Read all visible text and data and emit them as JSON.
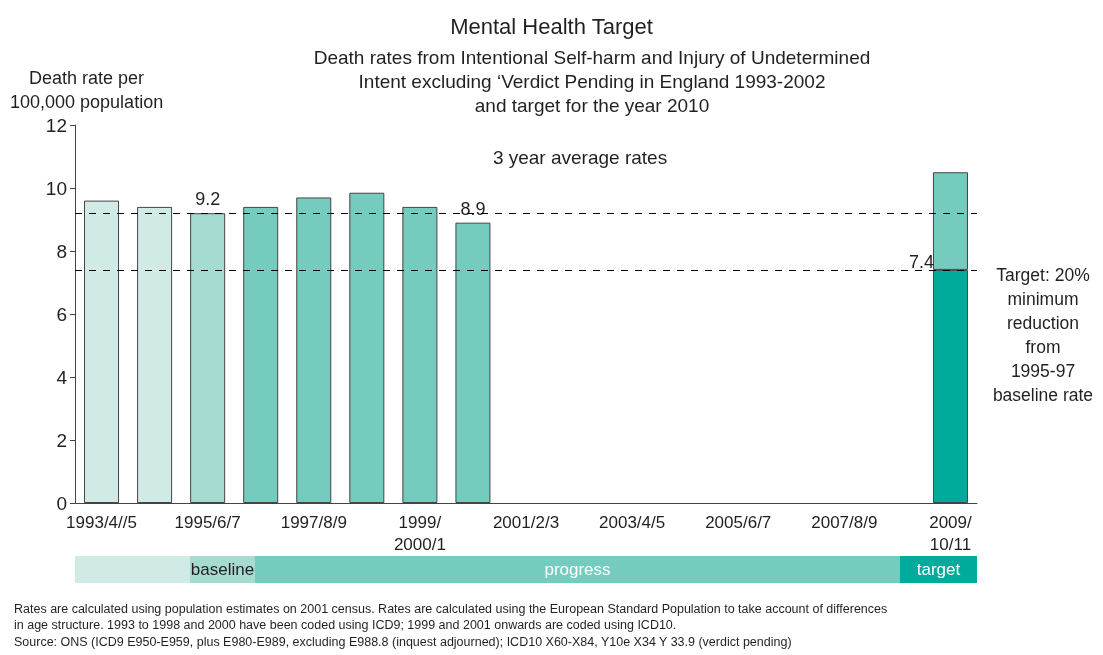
{
  "chart_data": {
    "type": "bar",
    "title": "Mental Health Target",
    "subtitle": "Death rates from Intentional Self-harm and Injury of Undetermined\nIntent excluding ‘Verdict Pending in England 1993-2002\nand target for the year 2010",
    "ylabel": "Death rate per\n100,000 population",
    "categories": [
      "1993/4//5",
      null,
      "1995/6/7",
      null,
      "1997/8/9",
      null,
      "1999/\n2000/1",
      null,
      "2001/2/3",
      null,
      "2003/4/5",
      null,
      "2005/6/7",
      null,
      "2007/8/9",
      null,
      "2009/\n10/11"
    ],
    "stacked": true,
    "series": [
      {
        "colors": [
          "#d0ebe5",
          "#d0ebe5",
          "#a6dbd1",
          "#75cbbe",
          "#75cbbe",
          "#75cbbe",
          "#75cbbe",
          "#75cbbe",
          null,
          null,
          null,
          null,
          null,
          null,
          null,
          null,
          "#00ab9b"
        ],
        "values": [
          9.6,
          9.4,
          9.2,
          9.4,
          9.7,
          9.85,
          9.4,
          8.9,
          null,
          null,
          null,
          null,
          null,
          null,
          null,
          null,
          7.4
        ],
        "value_labels": [
          null,
          null,
          "9.2",
          null,
          null,
          null,
          null,
          "8.9",
          null,
          null,
          null,
          null,
          null,
          null,
          null,
          null,
          "7.4"
        ]
      },
      {
        "color": "#75cbbe",
        "values": [
          null,
          null,
          null,
          null,
          null,
          null,
          null,
          null,
          null,
          null,
          null,
          null,
          null,
          null,
          null,
          null,
          3.1
        ]
      }
    ],
    "ylim": [
      0,
      12
    ],
    "yticks": [
      0,
      2,
      4,
      6,
      8,
      10,
      12
    ],
    "ref_lines": [
      {
        "axis": "y",
        "value": 9.2,
        "color": "#000000",
        "line_style": "dashed"
      },
      {
        "axis": "y",
        "value": 7.4,
        "color": "#000000",
        "line_style": "dashed"
      }
    ],
    "annotations": [
      "3 year average rates",
      "Target: 20%\nminimum\nreduction\nfrom\n1995-97\nbaseline rate",
      "Rates are calculated using population estimates on 2001 census. Rates are calculated using the European Standard Population to take account of differences\nin age structure. 1993 to 1998 and 2000 have been coded using ICD9; 1999 and 2001 onwards are coded using ICD10.",
      "Source: ONS (ICD9 E950-E959, plus E980-E989, excluding E988.8 (inquest adjourned); ICD10 X60-X84, Y10e X34 Y 33.9 (verdict pending)",
      "baseline",
      "progress",
      "target"
    ]
  }
}
